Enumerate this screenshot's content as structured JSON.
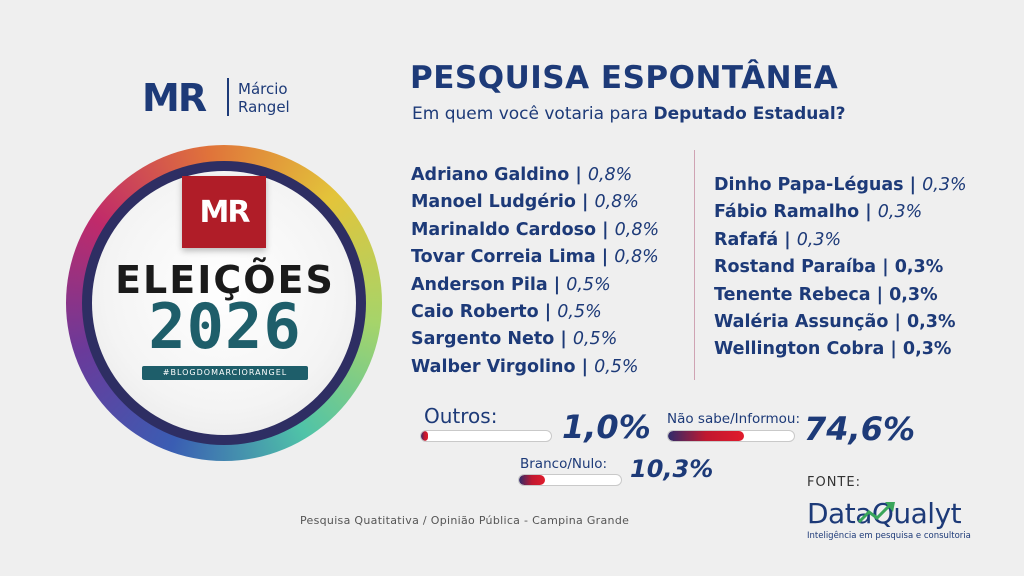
{
  "brand": {
    "logo": "MR",
    "name_line1": "Márcio",
    "name_line2": "Rangel"
  },
  "badge": {
    "flag_logo": "MR",
    "title": "ELEIÇÕES",
    "year": "2026",
    "hashtag": "#BLOGDOMARCIORANGEL"
  },
  "header": {
    "title": "PESQUISA ESPONTÂNEA",
    "subtitle_prefix": "Em quem você votaria para ",
    "subtitle_bold": "Deputado Estadual?"
  },
  "candidates_left": [
    {
      "name": "Adriano Galdino |",
      "pct": "0,8%"
    },
    {
      "name": "Manoel Ludgério |",
      "pct": "0,8%"
    },
    {
      "name": "Marinaldo Cardoso |",
      "pct": "0,8%"
    },
    {
      "name": "Tovar Correia Lima |",
      "pct": "0,8%"
    },
    {
      "name": "Anderson Pila |",
      "pct": "0,5%"
    },
    {
      "name": "Caio Roberto |",
      "pct": "0,5%"
    },
    {
      "name": "Sargento Neto |",
      "pct": "0,5%"
    },
    {
      "name": "Walber Virgolino |",
      "pct": "0,5%"
    }
  ],
  "candidates_right": [
    {
      "name": "Dinho Papa-Léguas |",
      "pct": "0,3%"
    },
    {
      "name": "Fábio Ramalho |",
      "pct": "0,3%"
    },
    {
      "name": "Rafafá |",
      "pct": "0,3%"
    },
    {
      "name": "Rostand Paraíba |",
      "pct": "0,3%"
    },
    {
      "name": "Tenente Rebeca |",
      "pct": "0,3%"
    },
    {
      "name": "Waléria Assunção |",
      "pct": "0,3%"
    },
    {
      "name": "Wellington Cobra |",
      "pct": "0,3%"
    }
  ],
  "summary": {
    "outros": {
      "label": "Outros:",
      "value": "1,0%",
      "fill": 0.05
    },
    "nao_sabe": {
      "label": "Não sabe/Informou:",
      "value": "74,6%",
      "fill": 0.6
    },
    "branco": {
      "label": "Branco/Nulo:",
      "value": "10,3%",
      "fill": 0.25
    }
  },
  "footer": {
    "note": "Pesquisa Quatitativa / Opinião Pública - Campina Grande",
    "fonte_label": "FONTE:",
    "source_name": "DataQualyt",
    "source_tagline": "Inteligência em pesquisa e consultoria"
  },
  "colors": {
    "primary": "#1d3a78",
    "accent_red": "#b01d28",
    "teal": "#1e5e6a"
  }
}
